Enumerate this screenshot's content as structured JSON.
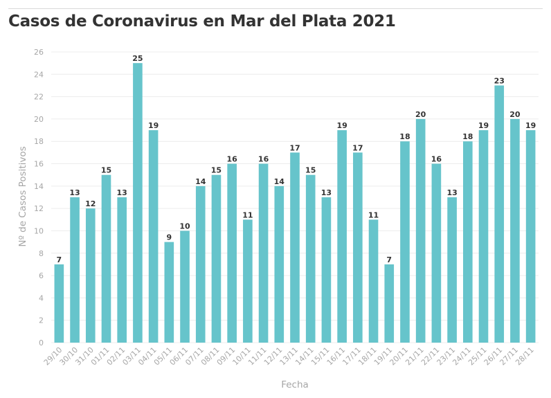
{
  "title": "Casos de Coronavirus en Mar del Plata 2021",
  "colors": {
    "bar": "#66c4cb",
    "grid": "#ececec",
    "axis_text": "#a6a6a6",
    "label_text": "#333333"
  },
  "chart_data": {
    "type": "bar",
    "title": "Casos de Coronavirus en Mar del Plata 2021",
    "xlabel": "Fecha",
    "ylabel": "Nº de Casos Positivos",
    "ylim": [
      0,
      26
    ],
    "yticks": [
      0,
      2,
      4,
      6,
      8,
      10,
      12,
      14,
      16,
      18,
      20,
      22,
      24,
      26
    ],
    "grid": true,
    "categories": [
      "29/10",
      "30/10",
      "31/10",
      "01/11",
      "02/11",
      "03/11",
      "04/11",
      "05/11",
      "06/11",
      "07/11",
      "08/11",
      "09/11",
      "10/11",
      "11/11",
      "12/11",
      "13/11",
      "14/11",
      "15/11",
      "16/11",
      "17/11",
      "18/11",
      "19/11",
      "20/11",
      "21/11",
      "22/11",
      "23/11",
      "24/11",
      "25/11",
      "26/11",
      "27/11",
      "28/11"
    ],
    "values": [
      7,
      13,
      12,
      15,
      13,
      25,
      19,
      9,
      10,
      14,
      15,
      16,
      11,
      16,
      14,
      17,
      15,
      13,
      19,
      17,
      11,
      7,
      18,
      20,
      16,
      13,
      18,
      19,
      23,
      20,
      19
    ]
  }
}
